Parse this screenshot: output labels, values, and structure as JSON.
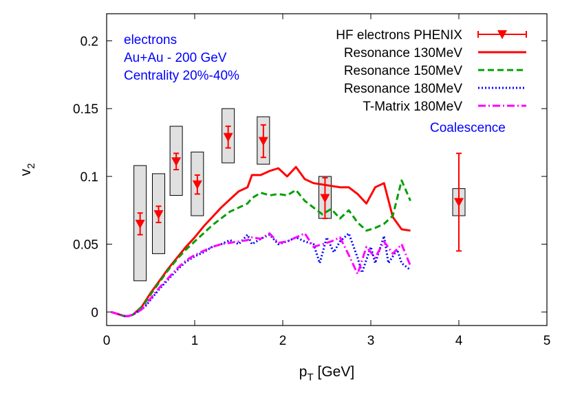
{
  "chart_data": {
    "type": "line",
    "xlabel": "p_T [GeV]",
    "ylabel": "v_2",
    "xlim": [
      0,
      5
    ],
    "ylim": [
      -0.01,
      0.22
    ],
    "x_ticks": [
      "0",
      "1",
      "2",
      "3",
      "4",
      "5"
    ],
    "y_ticks": [
      "0",
      "0.05",
      "0.1",
      "0.15",
      "0.2"
    ],
    "annotations": {
      "lines": [
        "electrons",
        "Au+Au - 200 GeV",
        "Centrality 20%-40%"
      ],
      "coalescence": "Coalescence",
      "color": "#0000ff"
    },
    "series": [
      {
        "name": "HF electrons PHENIX",
        "style": "points",
        "color": "#ff0000",
        "x": [
          0.38,
          0.59,
          0.79,
          1.03,
          1.38,
          1.78,
          2.48,
          4.0
        ],
        "y": [
          0.065,
          0.072,
          0.111,
          0.094,
          0.129,
          0.126,
          0.084,
          0.081
        ],
        "err": [
          0.008,
          0.006,
          0.006,
          0.007,
          0.008,
          0.012,
          0.015,
          0.036
        ],
        "sys_low": [
          0.023,
          0.043,
          0.086,
          0.071,
          0.11,
          0.109,
          0.069,
          0.071
        ],
        "sys_high": [
          0.108,
          0.102,
          0.137,
          0.118,
          0.15,
          0.144,
          0.1,
          0.091
        ]
      },
      {
        "name": "Resonance 130MeV",
        "style": "solid",
        "color": "#ff0000",
        "x": [
          0.05,
          0.1,
          0.15,
          0.2,
          0.25,
          0.3,
          0.35,
          0.4,
          0.45,
          0.5,
          0.6,
          0.7,
          0.8,
          0.9,
          1.0,
          1.1,
          1.2,
          1.3,
          1.4,
          1.5,
          1.6,
          1.65,
          1.75,
          1.85,
          1.95,
          2.05,
          2.15,
          2.25,
          2.35,
          2.45,
          2.55,
          2.65,
          2.75,
          2.85,
          2.95,
          3.05,
          3.15,
          3.25,
          3.35,
          3.45
        ],
        "y": [
          0.0,
          -0.001,
          -0.002,
          -0.003,
          -0.003,
          -0.002,
          0.001,
          0.004,
          0.009,
          0.014,
          0.023,
          0.032,
          0.04,
          0.048,
          0.055,
          0.063,
          0.07,
          0.077,
          0.083,
          0.089,
          0.092,
          0.101,
          0.101,
          0.104,
          0.106,
          0.1,
          0.107,
          0.098,
          0.095,
          0.094,
          0.093,
          0.092,
          0.092,
          0.087,
          0.08,
          0.092,
          0.095,
          0.07,
          0.061,
          0.06
        ]
      },
      {
        "name": "Resonance 150MeV",
        "style": "dashed",
        "color": "#00a000",
        "x": [
          0.05,
          0.1,
          0.15,
          0.2,
          0.25,
          0.3,
          0.35,
          0.4,
          0.45,
          0.5,
          0.6,
          0.7,
          0.8,
          0.9,
          1.0,
          1.1,
          1.2,
          1.3,
          1.4,
          1.5,
          1.6,
          1.65,
          1.75,
          1.85,
          1.95,
          2.05,
          2.15,
          2.25,
          2.35,
          2.45,
          2.55,
          2.65,
          2.75,
          2.85,
          2.95,
          3.05,
          3.15,
          3.25,
          3.35,
          3.45
        ],
        "y": [
          0.0,
          -0.001,
          -0.002,
          -0.003,
          -0.003,
          -0.002,
          0.001,
          0.004,
          0.008,
          0.013,
          0.022,
          0.031,
          0.039,
          0.046,
          0.052,
          0.058,
          0.064,
          0.069,
          0.074,
          0.077,
          0.08,
          0.084,
          0.088,
          0.086,
          0.087,
          0.086,
          0.09,
          0.082,
          0.077,
          0.072,
          0.076,
          0.069,
          0.075,
          0.066,
          0.06,
          0.062,
          0.065,
          0.071,
          0.097,
          0.082
        ]
      },
      {
        "name": "Resonance 180MeV",
        "style": "dotted",
        "color": "#0000ff",
        "x": [
          0.05,
          0.1,
          0.15,
          0.2,
          0.25,
          0.3,
          0.35,
          0.4,
          0.45,
          0.5,
          0.6,
          0.7,
          0.8,
          0.9,
          1.0,
          1.1,
          1.2,
          1.3,
          1.4,
          1.5,
          1.6,
          1.65,
          1.75,
          1.85,
          1.95,
          2.05,
          2.15,
          2.25,
          2.35,
          2.42,
          2.5,
          2.58,
          2.65,
          2.75,
          2.85,
          2.9,
          3.0,
          3.05,
          3.15,
          3.2,
          3.3,
          3.35,
          3.45
        ],
        "y": [
          0.0,
          -0.001,
          -0.002,
          -0.003,
          -0.003,
          -0.002,
          0.0,
          0.002,
          0.005,
          0.009,
          0.017,
          0.024,
          0.031,
          0.037,
          0.041,
          0.044,
          0.048,
          0.05,
          0.053,
          0.05,
          0.057,
          0.05,
          0.054,
          0.057,
          0.05,
          0.052,
          0.055,
          0.052,
          0.05,
          0.036,
          0.055,
          0.044,
          0.052,
          0.058,
          0.04,
          0.029,
          0.048,
          0.036,
          0.056,
          0.036,
          0.046,
          0.036,
          0.031
        ]
      },
      {
        "name": "T-Matrix 180MeV",
        "style": "dashdot",
        "color": "#ff00ff",
        "x": [
          0.05,
          0.1,
          0.15,
          0.2,
          0.25,
          0.3,
          0.35,
          0.4,
          0.45,
          0.5,
          0.6,
          0.7,
          0.8,
          0.9,
          1.0,
          1.1,
          1.2,
          1.3,
          1.4,
          1.5,
          1.6,
          1.65,
          1.75,
          1.85,
          1.95,
          2.05,
          2.15,
          2.25,
          2.35,
          2.45,
          2.55,
          2.65,
          2.75,
          2.85,
          2.95,
          3.05,
          3.15,
          3.25,
          3.35,
          3.45
        ],
        "y": [
          0.0,
          -0.001,
          -0.002,
          -0.003,
          -0.003,
          -0.002,
          0.0,
          0.002,
          0.006,
          0.01,
          0.018,
          0.025,
          0.032,
          0.038,
          0.042,
          0.045,
          0.048,
          0.05,
          0.051,
          0.052,
          0.053,
          0.055,
          0.054,
          0.058,
          0.051,
          0.052,
          0.055,
          0.058,
          0.048,
          0.05,
          0.052,
          0.055,
          0.042,
          0.028,
          0.048,
          0.04,
          0.052,
          0.043,
          0.05,
          0.034
        ]
      }
    ]
  }
}
